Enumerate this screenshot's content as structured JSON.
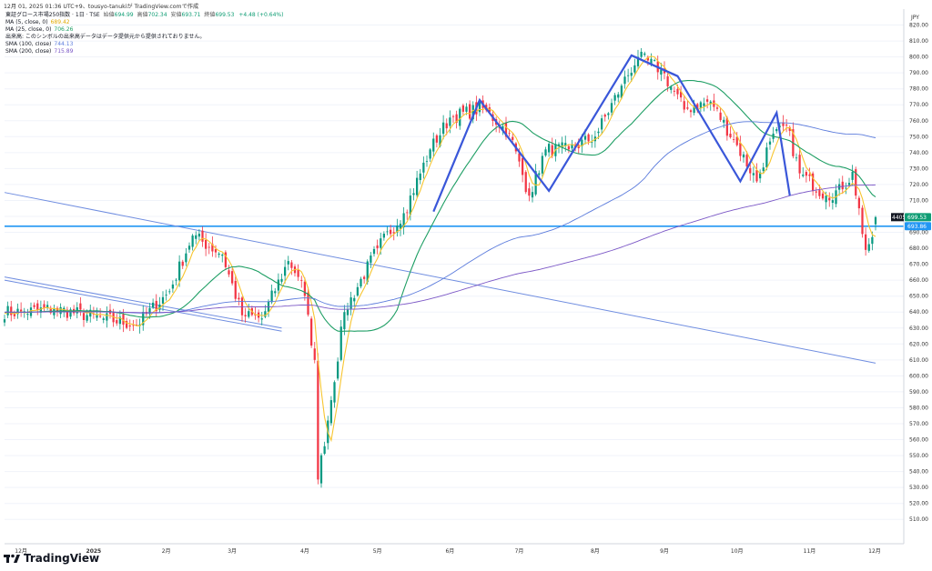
{
  "header": {
    "caption": "12月 01, 2025 01:36 UTC+9、tousyo-tanukiが TradingView.comで作成"
  },
  "legend": {
    "title": "東証グロース市場250指数 · 1日 · TSE",
    "ohlc": [
      {
        "key": "始値",
        "value": "694.99"
      },
      {
        "key": "高値",
        "value": "702.34"
      },
      {
        "key": "安値",
        "value": "693.71"
      },
      {
        "key": "終値",
        "value": "699.53"
      }
    ],
    "change": "+4.48 (+0.64%)",
    "indicators": [
      {
        "label": "MA (5, close, 0)",
        "value": "689.42",
        "color": "#f7c530"
      },
      {
        "label": "MA (25, close, 0)",
        "value": "706.26",
        "color": "#1e9e64"
      },
      {
        "label": "出来高: このシンボルの出来高データはデータ提供元から提供されておりません。",
        "value": "",
        "color": "#333333"
      },
      {
        "label": "SMA (100, close)",
        "value": "744.13",
        "color": "#5b7bdc"
      },
      {
        "label": "SMA (200, close)",
        "value": "715.89",
        "color": "#7b57c6"
      }
    ]
  },
  "price_axis": {
    "currency": "JPY",
    "last_price_tag": {
      "symbol": "4405",
      "value": "699.53",
      "color": "#0f9d74"
    },
    "hline_tag": {
      "value": "693.86",
      "color": "#2196f3"
    }
  },
  "brand": {
    "name": "TradingView"
  },
  "chart_data": {
    "type": "candlestick",
    "title": "東証グロース市場250指数 · 1日 · TSE",
    "timeframe": "1日",
    "ylim": [
      505,
      830
    ],
    "y_ticks": [
      510,
      520,
      530,
      540,
      550,
      560,
      570,
      580,
      590,
      600,
      610,
      620,
      630,
      640,
      650,
      660,
      670,
      680,
      690,
      700,
      710,
      720,
      730,
      740,
      750,
      760,
      770,
      780,
      790,
      800,
      810,
      820
    ],
    "x_ticks": [
      "12月",
      "2025",
      "2月",
      "3月",
      "4月",
      "5月",
      "6月",
      "7月",
      "8月",
      "9月",
      "10月",
      "11月",
      "12月"
    ],
    "bull_color": "#089981",
    "bear_color": "#f23645",
    "anchors": [
      [
        "2024-12-02",
        640
      ],
      [
        "2024-12-16",
        642
      ],
      [
        "2025-01-06",
        636
      ],
      [
        "2025-01-20",
        632
      ],
      [
        "2025-02-03",
        653
      ],
      [
        "2025-02-12",
        688
      ],
      [
        "2025-02-25",
        676
      ],
      [
        "2025-03-05",
        638
      ],
      [
        "2025-03-13",
        636
      ],
      [
        "2025-03-25",
        672
      ],
      [
        "2025-03-31",
        660
      ],
      [
        "2025-04-04",
        610
      ],
      [
        "2025-04-07",
        535
      ],
      [
        "2025-04-10",
        572
      ],
      [
        "2025-04-17",
        640
      ],
      [
        "2025-05-01",
        680
      ],
      [
        "2025-05-13",
        702
      ],
      [
        "2025-05-23",
        742
      ],
      [
        "2025-06-02",
        762
      ],
      [
        "2025-06-16",
        768
      ],
      [
        "2025-06-26",
        752
      ],
      [
        "2025-07-04",
        713
      ],
      [
        "2025-07-11",
        742
      ],
      [
        "2025-07-22",
        742
      ],
      [
        "2025-08-01",
        750
      ],
      [
        "2025-08-13",
        782
      ],
      [
        "2025-08-20",
        800
      ],
      [
        "2025-08-29",
        792
      ],
      [
        "2025-09-09",
        767
      ],
      [
        "2025-09-19",
        772
      ],
      [
        "2025-09-30",
        748
      ],
      [
        "2025-10-09",
        722
      ],
      [
        "2025-10-15",
        747
      ],
      [
        "2025-10-22",
        757
      ],
      [
        "2025-10-28",
        727
      ],
      [
        "2025-11-07",
        713
      ],
      [
        "2025-11-14",
        717
      ],
      [
        "2025-11-19",
        728
      ],
      [
        "2025-11-25",
        679
      ],
      [
        "2025-11-27",
        687
      ],
      [
        "2025-11-28",
        699.53
      ]
    ],
    "series": [
      {
        "name": "MA (5, close, 0)",
        "color": "#f7c530",
        "period": 5
      },
      {
        "name": "MA (25, close, 0)",
        "color": "#1e9e64",
        "period": 25
      },
      {
        "name": "SMA (100, close)",
        "color": "#5b7bdc",
        "period": 100
      },
      {
        "name": "SMA (200, close)",
        "color": "#7b57c6",
        "period": 200
      }
    ],
    "drawings": {
      "horizontal_line": {
        "price": 693.86,
        "color": "#2196f3"
      },
      "trend_lines": [
        {
          "from": [
            "2024-11-25",
            715
          ],
          "to": [
            "2025-11-28",
            608
          ],
          "color": "#6f8de0"
        },
        {
          "from": [
            "2024-11-25",
            662
          ],
          "to": [
            "2025-03-21",
            630
          ],
          "color": "#6f8de0"
        },
        {
          "from": [
            "2024-11-25",
            660
          ],
          "to": [
            "2025-03-21",
            628
          ],
          "color": "#6f8de0"
        }
      ],
      "w_pattern_1": {
        "points": [
          [
            "2025-05-26",
            703
          ],
          [
            "2025-06-13",
            773
          ],
          [
            "2025-07-14",
            716
          ],
          [
            "2025-08-18",
            801
          ],
          [
            "2025-09-05",
            788
          ]
        ],
        "color": "#3a57d9"
      },
      "w_pattern_2": {
        "points": [
          [
            "2025-08-18",
            801
          ],
          [
            "2025-09-05",
            788
          ],
          [
            "2025-10-02",
            722
          ],
          [
            "2025-10-17",
            765
          ],
          [
            "2025-10-23",
            713
          ]
        ],
        "color": "#3a57d9"
      }
    }
  }
}
